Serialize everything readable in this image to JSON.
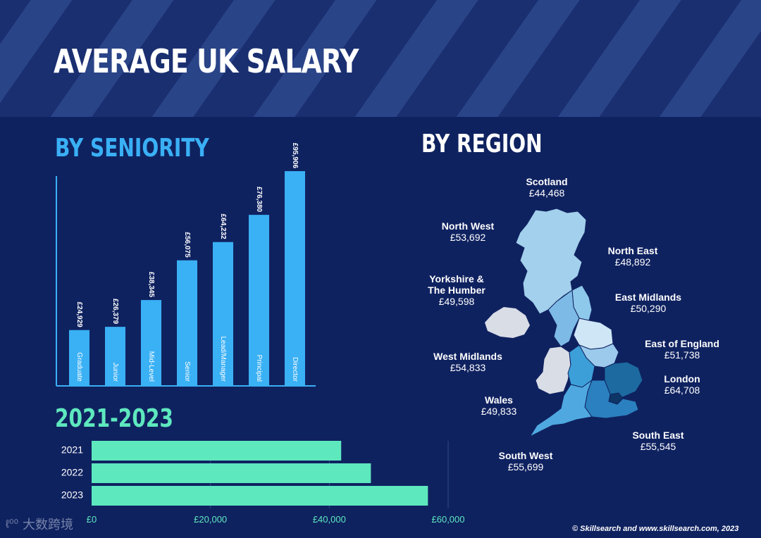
{
  "title": "AVERAGE UK SALARY",
  "sections": {
    "seniority": "BY SENIORITY",
    "region": "BY REGION",
    "years": "2021-2023"
  },
  "colors": {
    "background": "#0f2260",
    "seniority_bar": "#3ab0f5",
    "years_bar": "#5ee8be"
  },
  "chart_data": [
    {
      "type": "bar",
      "title": "BY SENIORITY",
      "orientation": "vertical",
      "categories": [
        "Graduate",
        "Junior",
        "Mid-Level",
        "Senior",
        "Lead/Manager",
        "Principal",
        "Director"
      ],
      "values": [
        24929,
        26379,
        38345,
        56075,
        64232,
        76380,
        95906
      ],
      "value_labels": [
        "£24,929",
        "£26,379",
        "£38,345",
        "£56,075",
        "£64,232",
        "£76,380",
        "£95,906"
      ],
      "ylim": [
        0,
        100000
      ],
      "grid": false
    },
    {
      "type": "bar",
      "title": "2021-2023",
      "orientation": "horizontal",
      "categories": [
        "2021",
        "2022",
        "2023"
      ],
      "values": [
        42000,
        47000,
        56600
      ],
      "xticks": [
        0,
        20000,
        40000,
        60000
      ],
      "xtick_labels": [
        "£0",
        "£20,000",
        "£40,000",
        "£60,000"
      ],
      "xlim": [
        0,
        60000
      ],
      "grid": true
    }
  ],
  "regions": [
    {
      "id": "scotland",
      "name": "Scotland",
      "value": "£44,468"
    },
    {
      "id": "north-west",
      "name": "North West",
      "value": "£53,692"
    },
    {
      "id": "north-east",
      "name": "North East",
      "value": "£48,892"
    },
    {
      "id": "yorkshire",
      "name": "Yorkshire & The Humber",
      "name_lines": [
        "Yorkshire &",
        "The Humber"
      ],
      "value": "£49,598"
    },
    {
      "id": "east-midlands",
      "name": "East Midlands",
      "value": "£50,290"
    },
    {
      "id": "east-of-england",
      "name": "East of England",
      "value": "£51,738"
    },
    {
      "id": "west-midlands",
      "name": "West Midlands",
      "value": "£54,833"
    },
    {
      "id": "london",
      "name": "London",
      "value": "£64,708"
    },
    {
      "id": "wales",
      "name": "Wales",
      "value": "£49,833"
    },
    {
      "id": "south-east",
      "name": "South East",
      "value": "£55,545"
    },
    {
      "id": "south-west",
      "name": "South West",
      "value": "£55,699"
    }
  ],
  "footer": {
    "credit": "© Skillsearch and www.skillsearch.com, 2023",
    "watermark": "大数跨境"
  }
}
